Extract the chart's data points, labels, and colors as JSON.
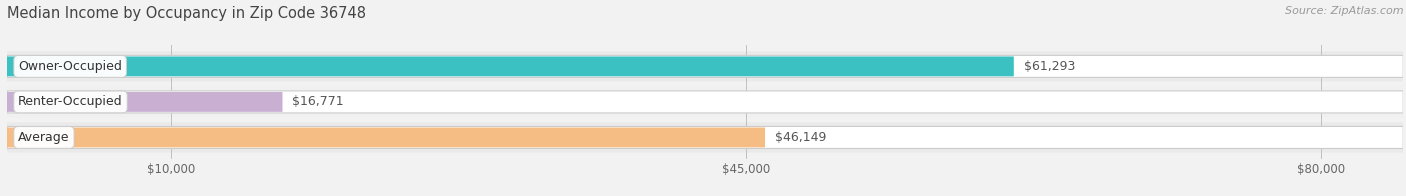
{
  "title": "Median Income by Occupancy in Zip Code 36748",
  "source": "Source: ZipAtlas.com",
  "categories": [
    "Owner-Occupied",
    "Renter-Occupied",
    "Average"
  ],
  "values": [
    61293,
    16771,
    46149
  ],
  "bar_colors": [
    "#2bbcbe",
    "#c5aad0",
    "#f5b87a"
  ],
  "value_labels": [
    "$61,293",
    "$16,771",
    "$46,149"
  ],
  "tick_labels": [
    "$10,000",
    "$45,000",
    "$80,000"
  ],
  "tick_values": [
    10000,
    45000,
    80000
  ],
  "xmin": 0,
  "xmax": 85000,
  "background_color": "#f2f2f2",
  "bar_bg_color": "#e0e0e0",
  "row_bg_colors": [
    "#e8e8e8",
    "#efefef",
    "#e8e8e8"
  ],
  "title_fontsize": 10.5,
  "source_fontsize": 8,
  "label_fontsize": 9,
  "value_fontsize": 9,
  "tick_fontsize": 8.5
}
